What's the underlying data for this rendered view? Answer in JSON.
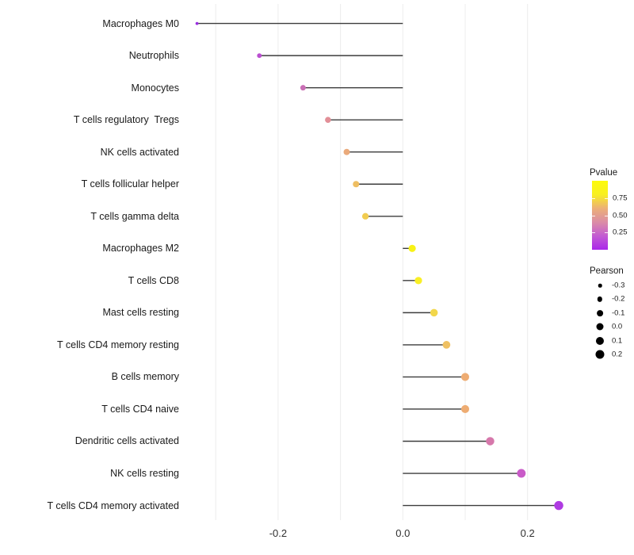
{
  "chart_data": {
    "type": "scatter",
    "subtype": "lollipop",
    "orientation": "horizontal",
    "title": "",
    "xlabel": "",
    "ylabel": "",
    "xlim": [
      -0.35,
      0.27
    ],
    "x_tick_values": [
      -0.2,
      0.0,
      0.2
    ],
    "x_tick_labels": [
      "-0.2",
      "0.0",
      "0.2"
    ],
    "gridline_values": [
      -0.3,
      -0.2,
      -0.1,
      0.0,
      0.1,
      0.2
    ],
    "stem_anchor": 0.0,
    "grid": "vertical-only",
    "legend_position": "right",
    "categories": [
      "Macrophages M0",
      "Neutrophils",
      "Monocytes",
      "T cells regulatory  Tregs",
      "NK cells activated",
      "T cells follicular helper",
      "T cells gamma delta",
      "Macrophages M2",
      "T cells CD8",
      "Mast cells resting",
      "T cells CD4 memory resting",
      "B cells memory",
      "T cells CD4 naive",
      "Dendritic cells activated",
      "NK cells resting",
      "T cells CD4 memory activated"
    ],
    "series": [
      {
        "name": "Pearson",
        "values": [
          -0.33,
          -0.23,
          -0.16,
          -0.12,
          -0.09,
          -0.075,
          -0.06,
          0.015,
          0.025,
          0.05,
          0.07,
          0.1,
          0.1,
          0.14,
          0.19,
          0.25
        ]
      }
    ],
    "point_colors": [
      "#9a2fe1",
      "#bb4fd1",
      "#c96fb5",
      "#e28f97",
      "#eaaa7b",
      "#eebe62",
      "#f1cc50",
      "#f8f215",
      "#f9ef25",
      "#f2d74b",
      "#efc163",
      "#eeac72",
      "#eeac72",
      "#d678ab",
      "#c95bc8",
      "#af3be2"
    ]
  },
  "legends": {
    "pvalue": {
      "title": "Pvalue",
      "tick_labels": [
        "0.75",
        "0.50",
        "0.25"
      ],
      "tick_values": [
        0.75,
        0.5,
        0.25
      ],
      "gradient_stops_bottom_to_top": [
        "#aa26ea",
        "#c35bd2",
        "#db8da6",
        "#ecb077",
        "#f8ef20",
        "#fdfb0c"
      ]
    },
    "pearson": {
      "title": "Pearson",
      "size_labels": [
        "-0.3",
        "-0.2",
        "-0.1",
        "0.0",
        "0.1",
        "0.2"
      ],
      "size_values": [
        -0.3,
        -0.2,
        -0.1,
        0.0,
        0.1,
        0.2
      ],
      "dot_color": "#000000"
    }
  },
  "colors": {
    "background": "#ffffff",
    "stem": "#3c3c3c",
    "gridline": "#ececec",
    "axis_text": "#303030",
    "category_text": "#1a1a1a"
  }
}
